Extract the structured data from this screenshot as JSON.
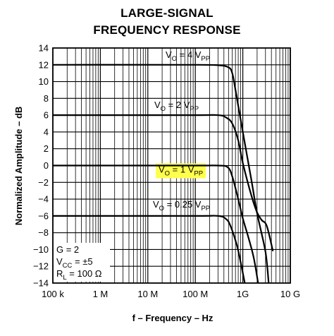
{
  "title": [
    "LARGE-SIGNAL",
    "FREQUENCY RESPONSE"
  ],
  "chart_data": {
    "type": "line",
    "title": "LARGE-SIGNAL FREQUENCY RESPONSE",
    "xlabel": "f – Frequency – Hz",
    "ylabel": "Normalized Amplitude – dB",
    "x_scale": "log",
    "xlim_hz": [
      100000,
      10000000000
    ],
    "ylim": [
      -14,
      14
    ],
    "grid": true,
    "x_ticks": [
      {
        "value": 100000,
        "label": "100 k"
      },
      {
        "value": 1000000,
        "label": "1 M"
      },
      {
        "value": 10000000,
        "label": "10 M"
      },
      {
        "value": 100000000,
        "label": "100 M"
      },
      {
        "value": 1000000000,
        "label": "1G"
      },
      {
        "value": 10000000000,
        "label": "10 G"
      }
    ],
    "y_ticks": [
      14,
      12,
      10,
      8,
      6,
      4,
      2,
      0,
      -2,
      -4,
      -6,
      -8,
      -10,
      -12,
      -14
    ],
    "series": [
      {
        "name": "VO = 4 VPP",
        "label_main": "V",
        "label_sub1": "O",
        "label_mid": " = 4 V",
        "label_sub2": "PP",
        "highlight": false,
        "points": [
          [
            100000,
            12
          ],
          [
            80000000,
            12
          ],
          [
            300000000,
            11.95
          ],
          [
            500000000,
            11.7
          ],
          [
            600000000,
            11
          ],
          [
            700000000,
            9
          ],
          [
            1000000000,
            4
          ],
          [
            1500000000,
            -1.6
          ],
          [
            2000000000,
            -5.7
          ],
          [
            3000000000,
            -10.3
          ],
          [
            3500000000,
            -14
          ]
        ]
      },
      {
        "name": "VO = 2 VPP",
        "label_main": "V",
        "label_sub1": "O",
        "label_mid": " = 2 V",
        "label_sub2": "PP",
        "highlight": false,
        "points": [
          [
            100000,
            6
          ],
          [
            80000000,
            6
          ],
          [
            300000000,
            6
          ],
          [
            450000000,
            5.7
          ],
          [
            600000000,
            5
          ],
          [
            800000000,
            3
          ],
          [
            1000000000,
            0.3
          ],
          [
            1500000000,
            -3.5
          ],
          [
            2000000000,
            -5.6
          ],
          [
            2500000000,
            -6.5
          ],
          [
            3200000000,
            -7.2
          ],
          [
            4300000000,
            -10.2
          ]
        ]
      },
      {
        "name": "VO = 1 VPP",
        "label_main": "V",
        "label_sub1": "O",
        "label_mid": " = 1 V",
        "label_sub2": "PP",
        "highlight": true,
        "points": [
          [
            100000,
            0
          ],
          [
            80000000,
            0
          ],
          [
            300000000,
            0
          ],
          [
            480000000,
            -0.2
          ],
          [
            600000000,
            -1.3
          ],
          [
            800000000,
            -4
          ],
          [
            1000000000,
            -6.3
          ],
          [
            1300000000,
            -8.5
          ],
          [
            1700000000,
            -11
          ],
          [
            2100000000,
            -14
          ]
        ]
      },
      {
        "name": "VO = 0.25 VPP",
        "label_main": "V",
        "label_sub1": "O",
        "label_mid": " = 0.25 V",
        "label_sub2": "PP",
        "highlight": false,
        "points": [
          [
            100000,
            -6
          ],
          [
            80000000,
            -6
          ],
          [
            300000000,
            -6
          ],
          [
            450000000,
            -6.4
          ],
          [
            550000000,
            -7.2
          ],
          [
            750000000,
            -9.5
          ],
          [
            900000000,
            -11.5
          ],
          [
            1100000000,
            -14
          ]
        ]
      }
    ],
    "annotations": [
      {
        "main": "G = 2"
      },
      {
        "main": "V",
        "sub": "CC",
        "rest": " = ±5"
      },
      {
        "main": "R",
        "sub": "L",
        "rest": " = 100 Ω"
      }
    ]
  }
}
